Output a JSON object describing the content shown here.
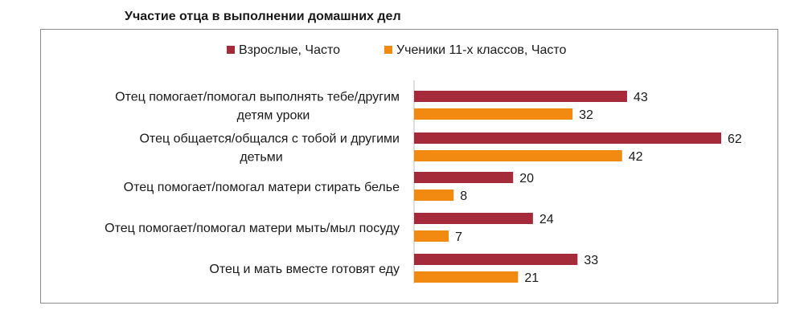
{
  "chart_data": {
    "type": "bar",
    "orientation": "horizontal",
    "title": "Участие отца в выполнении домашних дел",
    "categories": [
      [
        "Отец   помогает/помогал выполнять тебе/другим",
        "детям уроки"
      ],
      [
        "Отец   общается/общался с тобой и другими",
        "детьми"
      ],
      [
        "Отец   помогает/помогал матери стирать белье"
      ],
      [
        "Отец   помогает/помогал матери мыть/мыл посуду"
      ],
      [
        "Отец  и мать вместе готовят еду"
      ]
    ],
    "series": [
      {
        "name": "Взрослые, Часто",
        "color": "#a52a3a",
        "values": [
          43,
          62,
          20,
          24,
          33
        ]
      },
      {
        "name": "Ученики 11-х классов,  Часто",
        "color": "#f28a12",
        "values": [
          32,
          42,
          8,
          7,
          21
        ]
      }
    ],
    "xlim": [
      0,
      70
    ],
    "grid": false,
    "legend_position": "top"
  }
}
